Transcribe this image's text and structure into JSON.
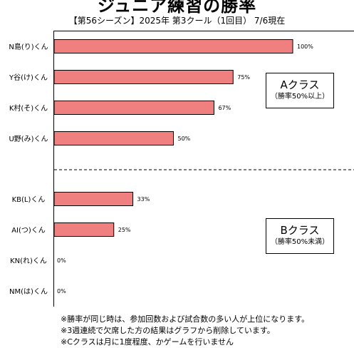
{
  "title": "ジュニア練習の勝率",
  "subtitle": "【第56シーズン】2025年 第3クール（1回目） 7/6現在",
  "chart_data": {
    "type": "bar",
    "orientation": "horizontal",
    "categories": [
      "N島(り)くん",
      "Y谷(け)くん",
      "K村(そ)くん",
      "U野(み)くん",
      "KB(L)くん",
      "AI(つ)くん",
      "KN(れ)くん",
      "NM(は)くん"
    ],
    "values": [
      100,
      75,
      67,
      50,
      33,
      25,
      0,
      0
    ],
    "data_labels": [
      "100%",
      "75%",
      "67%",
      "50%",
      "33%",
      "25%",
      "0%",
      "0%"
    ],
    "xlim": [
      0,
      100
    ],
    "bar_color": "#f08080",
    "groups": [
      {
        "label": "Aクラス",
        "sub": "（勝率50%以上）"
      },
      {
        "label": "Bクラス",
        "sub": "（勝率50%未満）"
      }
    ]
  },
  "notes": [
    "※勝率が同じ時は、参加回数および試合数の多い人が上位になります。",
    "※3週連続で欠席した方の結果はグラフから削除しています。",
    "※Cクラスは月に1度程度、かゲームを行いません"
  ]
}
